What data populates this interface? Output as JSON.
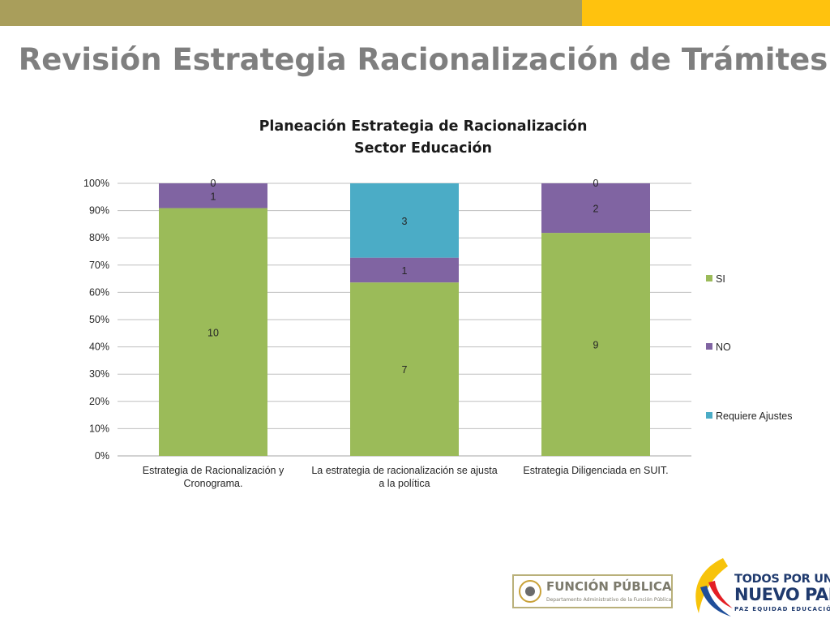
{
  "slide": {
    "title": "Revisión Estrategia Racionalización de Trámites",
    "colors": {
      "olive_bar": "#a99e5b",
      "gold_bar": "#ffc20e",
      "title_gray": "#7f7f7f"
    }
  },
  "chart_data": {
    "type": "bar",
    "stacked": true,
    "normalized_100_percent": true,
    "title": "Planeación Estrategia de Racionalización",
    "subtitle": "Sector Educación",
    "categories": [
      [
        "Estrategia de Racionalización y",
        "Cronograma."
      ],
      [
        "La estrategia de racionalización se ajusta",
        "a la política"
      ],
      [
        "Estrategia Diligenciada en SUIT."
      ]
    ],
    "series": [
      {
        "name": "SI",
        "color": "#9bbb59",
        "values": [
          10,
          7,
          9
        ]
      },
      {
        "name": "NO",
        "color": "#8064a2",
        "values": [
          1,
          1,
          2
        ]
      },
      {
        "name": "Requiere Ajustes",
        "color": "#4bacc6",
        "values": [
          0,
          3,
          0
        ]
      }
    ],
    "y_ticks": [
      "0%",
      "10%",
      "20%",
      "30%",
      "40%",
      "50%",
      "60%",
      "70%",
      "80%",
      "90%",
      "100%"
    ],
    "ylim": [
      0,
      100
    ],
    "grid": true,
    "legend_position": "right"
  },
  "footer": {
    "funcion_publica": {
      "name": "FUNCIÓN PÚBLICA",
      "subtitle": "Departamento Administrativo de la Función Pública"
    },
    "todos_por_un_nuevo_pais": {
      "line1": "TODOS POR UN",
      "line2": "NUEVO PAÍS",
      "line3": "PAZ  EQUIDAD  EDUCACIÓN"
    }
  }
}
